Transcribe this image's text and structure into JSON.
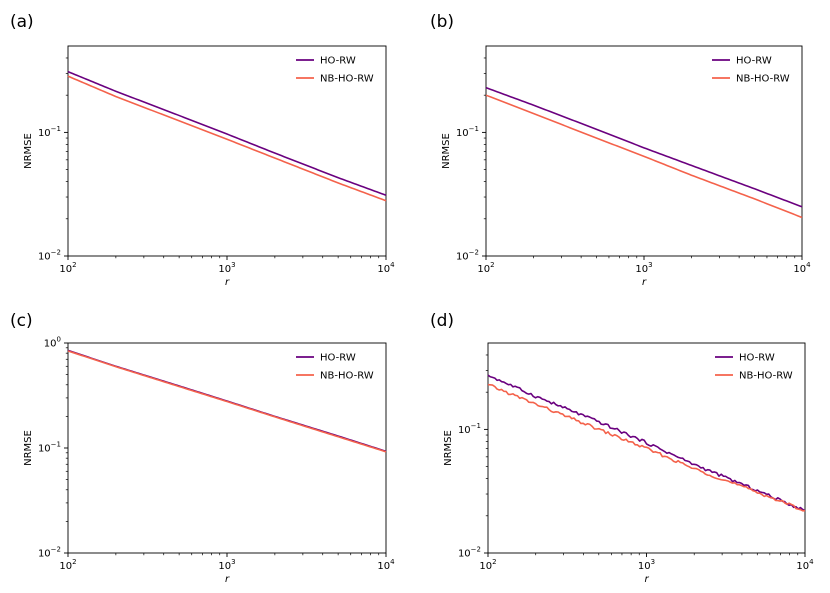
{
  "chart_data": [
    {
      "panel": "(a)",
      "type": "line",
      "xscale": "log",
      "yscale": "log",
      "xlim": [
        100,
        10000
      ],
      "ylim": [
        0.01,
        0.5
      ],
      "xlabel": "r",
      "ylabel": "NRMSE",
      "x_ticks": [
        {
          "base": "10",
          "exp": "2"
        },
        {
          "base": "10",
          "exp": "3"
        },
        {
          "base": "10",
          "exp": "4"
        }
      ],
      "y_ticks": [
        {
          "base": "10",
          "exp": "−2",
          "value": 0.01
        },
        {
          "base": "10",
          "exp": "−1",
          "value": 0.1
        }
      ],
      "legend_position": "top-right",
      "series": [
        {
          "name": "HO-RW",
          "color": "#6a007f",
          "x": [
            100,
            200,
            500,
            1000,
            2000,
            5000,
            10000
          ],
          "y": [
            0.31,
            0.215,
            0.137,
            0.097,
            0.068,
            0.043,
            0.031
          ],
          "wiggle": 0.0
        },
        {
          "name": "NB-HO-RW",
          "color": "#f4624b",
          "x": [
            100,
            200,
            500,
            1000,
            2000,
            5000,
            10000
          ],
          "y": [
            0.285,
            0.195,
            0.124,
            0.088,
            0.062,
            0.039,
            0.028
          ],
          "wiggle": 0.0
        }
      ]
    },
    {
      "panel": "(b)",
      "type": "line",
      "xscale": "log",
      "yscale": "log",
      "xlim": [
        100,
        10000
      ],
      "ylim": [
        0.01,
        0.5
      ],
      "xlabel": "r",
      "ylabel": "NRMSE",
      "x_ticks": [
        {
          "base": "10",
          "exp": "2"
        },
        {
          "base": "10",
          "exp": "3"
        },
        {
          "base": "10",
          "exp": "4"
        }
      ],
      "y_ticks": [
        {
          "base": "10",
          "exp": "−2",
          "value": 0.01
        },
        {
          "base": "10",
          "exp": "−1",
          "value": 0.1
        }
      ],
      "legend_position": "top-right",
      "series": [
        {
          "name": "HO-RW",
          "color": "#6a007f",
          "x": [
            100,
            200,
            500,
            1000,
            2000,
            5000,
            10000
          ],
          "y": [
            0.23,
            0.166,
            0.106,
            0.075,
            0.054,
            0.035,
            0.025
          ],
          "wiggle": 0.0
        },
        {
          "name": "NB-HO-RW",
          "color": "#f4624b",
          "x": [
            100,
            200,
            500,
            1000,
            2000,
            5000,
            10000
          ],
          "y": [
            0.2,
            0.142,
            0.09,
            0.064,
            0.045,
            0.029,
            0.0205
          ],
          "wiggle": 0.0
        }
      ]
    },
    {
      "panel": "(c)",
      "type": "line",
      "xscale": "log",
      "yscale": "log",
      "xlim": [
        100,
        10000
      ],
      "ylim": [
        0.01,
        1.0
      ],
      "xlabel": "r",
      "ylabel": "NRMSE",
      "x_ticks": [
        {
          "base": "10",
          "exp": "2"
        },
        {
          "base": "10",
          "exp": "3"
        },
        {
          "base": "10",
          "exp": "4"
        }
      ],
      "y_ticks": [
        {
          "base": "10",
          "exp": "−2",
          "value": 0.01
        },
        {
          "base": "10",
          "exp": "−1",
          "value": 0.1
        },
        {
          "base": "10",
          "exp": "0",
          "value": 1.0
        }
      ],
      "legend_position": "top-right",
      "series": [
        {
          "name": "HO-RW",
          "color": "#6a007f",
          "x": [
            100,
            200,
            500,
            1000,
            2000,
            5000,
            10000
          ],
          "y": [
            0.85,
            0.6,
            0.39,
            0.28,
            0.2,
            0.13,
            0.093
          ],
          "wiggle": 0.0
        },
        {
          "name": "NB-HO-RW",
          "color": "#f4624b",
          "x": [
            100,
            200,
            500,
            1000,
            2000,
            5000,
            10000
          ],
          "y": [
            0.84,
            0.595,
            0.385,
            0.277,
            0.198,
            0.128,
            0.092
          ],
          "wiggle": 0.0
        }
      ]
    },
    {
      "panel": "(d)",
      "type": "line",
      "xscale": "log",
      "yscale": "log",
      "xlim": [
        100,
        10000
      ],
      "ylim": [
        0.01,
        0.5
      ],
      "xlabel": "r",
      "ylabel": "NRMSE",
      "x_ticks": [
        {
          "base": "10",
          "exp": "2"
        },
        {
          "base": "10",
          "exp": "3"
        },
        {
          "base": "10",
          "exp": "4"
        }
      ],
      "y_ticks": [
        {
          "base": "10",
          "exp": "−2",
          "value": 0.01
        },
        {
          "base": "10",
          "exp": "−1",
          "value": 0.1
        }
      ],
      "legend_position": "top-right",
      "series": [
        {
          "name": "HO-RW",
          "color": "#6a007f",
          "x": [
            100,
            200,
            500,
            1000,
            2000,
            5000,
            10000
          ],
          "y": [
            0.275,
            0.185,
            0.115,
            0.078,
            0.052,
            0.032,
            0.022
          ],
          "wiggle": 0.012
        },
        {
          "name": "NB-HO-RW",
          "color": "#f4624b",
          "x": [
            100,
            200,
            500,
            1000,
            2000,
            5000,
            10000
          ],
          "y": [
            0.23,
            0.16,
            0.1,
            0.07,
            0.048,
            0.031,
            0.022
          ],
          "wiggle": 0.012
        }
      ]
    }
  ]
}
